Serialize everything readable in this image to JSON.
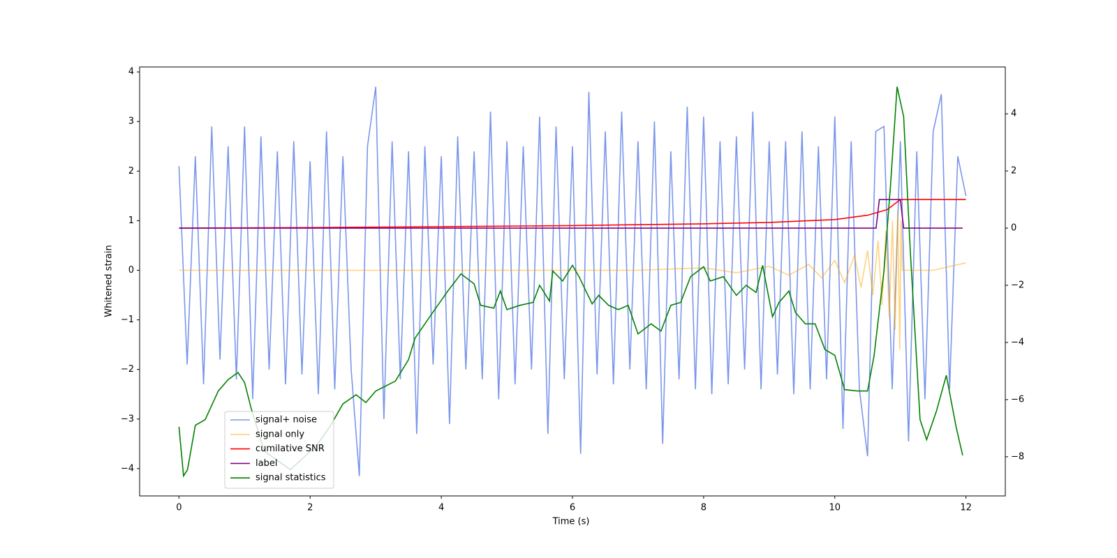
{
  "chart_data": {
    "type": "line",
    "xlabel": "Time (s)",
    "ylabel": "Whitened strain",
    "xlim": [
      -0.6,
      12.6
    ],
    "ylim": [
      -4.55,
      4.1
    ],
    "y2lim": [
      -9.37,
      5.64
    ],
    "xticks": [
      0,
      2,
      4,
      6,
      8,
      10,
      12
    ],
    "yticks": [
      {
        "value": -4,
        "label": "−4"
      },
      {
        "value": -3,
        "label": "−3"
      },
      {
        "value": -2,
        "label": "−2"
      },
      {
        "value": -1,
        "label": "−1"
      },
      0,
      1,
      2,
      3,
      4
    ],
    "y2ticks": [
      {
        "value": -8,
        "label": "−8"
      },
      {
        "value": -6,
        "label": "−6"
      },
      {
        "value": -4,
        "label": "−4"
      },
      {
        "value": -2,
        "label": "−2"
      },
      0,
      2,
      4
    ],
    "legend": "lower left",
    "series": [
      {
        "name": "signal+ noise",
        "color": "#4169e1",
        "opacity": 0.7,
        "x": [
          0,
          0.125,
          0.25,
          0.375,
          0.5,
          0.625,
          0.75,
          0.875,
          1,
          1.125,
          1.25,
          1.375,
          1.5,
          1.625,
          1.75,
          1.875,
          2,
          2.125,
          2.25,
          2.375,
          2.5,
          2.625,
          2.75,
          2.875,
          3,
          3.125,
          3.25,
          3.375,
          3.5,
          3.625,
          3.75,
          3.875,
          4,
          4.125,
          4.25,
          4.375,
          4.5,
          4.625,
          4.75,
          4.875,
          5,
          5.125,
          5.25,
          5.375,
          5.5,
          5.625,
          5.75,
          5.875,
          6,
          6.125,
          6.25,
          6.375,
          6.5,
          6.625,
          6.75,
          6.875,
          7,
          7.125,
          7.25,
          7.375,
          7.5,
          7.625,
          7.75,
          7.875,
          8,
          8.125,
          8.25,
          8.375,
          8.5,
          8.625,
          8.75,
          8.875,
          9,
          9.125,
          9.25,
          9.375,
          9.5,
          9.625,
          9.75,
          9.875,
          10,
          10.125,
          10.25,
          10.375,
          10.5,
          10.625,
          10.75,
          10.875,
          11,
          11.125,
          11.25,
          11.375,
          11.5,
          11.625,
          11.75,
          11.875,
          12
        ],
        "values": [
          2.1,
          -1.9,
          2.3,
          -2.3,
          2.9,
          -1.8,
          2.5,
          -2.2,
          2.9,
          -2.6,
          2.7,
          -2.0,
          2.4,
          -2.3,
          2.6,
          -2.1,
          2.2,
          -2.5,
          2.8,
          -2.4,
          2.3,
          -2.0,
          -4.15,
          2.5,
          3.7,
          -3.0,
          2.6,
          -2.2,
          2.4,
          -3.3,
          2.5,
          -1.9,
          2.3,
          -3.1,
          2.7,
          -2.0,
          2.4,
          -2.2,
          3.2,
          -2.6,
          2.6,
          -2.3,
          2.5,
          -2.0,
          3.1,
          -3.3,
          2.9,
          -2.2,
          2.5,
          -3.7,
          3.6,
          -2.1,
          2.8,
          -2.3,
          3.2,
          -2.0,
          2.6,
          -2.4,
          3.0,
          -3.5,
          2.4,
          -2.2,
          3.3,
          -2.4,
          3.1,
          -2.5,
          2.6,
          -2.3,
          2.7,
          -2.0,
          3.2,
          -2.4,
          2.6,
          -2.1,
          2.6,
          -2.5,
          2.8,
          -2.4,
          2.5,
          -2.2,
          3.1,
          -3.2,
          2.6,
          -2.4,
          -3.75,
          2.8,
          2.9,
          -2.4,
          2.6,
          -3.45,
          2.4,
          -2.6,
          2.8,
          3.55,
          -2.4,
          2.3,
          1.5
        ]
      },
      {
        "name": "signal only",
        "color": "orange",
        "opacity": 0.5,
        "x": [
          0,
          1,
          2,
          3,
          4,
          5,
          6,
          7,
          8,
          8.5,
          9,
          9.3,
          9.6,
          9.8,
          10,
          10.15,
          10.3,
          10.4,
          10.5,
          10.58,
          10.66,
          10.72,
          10.78,
          10.83,
          10.88,
          10.92,
          10.96,
          10.99,
          11.01,
          11.03,
          11.5,
          12
        ],
        "values": [
          0,
          0,
          0,
          0,
          0,
          0,
          0,
          0,
          0.05,
          -0.05,
          0.08,
          -0.1,
          0.12,
          -0.15,
          0.2,
          -0.25,
          0.3,
          -0.35,
          0.4,
          -0.5,
          0.6,
          -0.7,
          0.8,
          -0.95,
          1.0,
          -1.2,
          1.2,
          -1.6,
          1.0,
          0,
          0,
          0.15
        ]
      },
      {
        "name": "cumilative SNR",
        "color": "red",
        "axis": "y2",
        "x": [
          0,
          2,
          4,
          6,
          8,
          9,
          10,
          10.5,
          10.8,
          11,
          12
        ],
        "values": [
          0,
          0.02,
          0.05,
          0.09,
          0.15,
          0.2,
          0.3,
          0.45,
          0.65,
          1.0,
          1.0
        ]
      },
      {
        "name": "label",
        "color": "purple",
        "axis": "y2",
        "x": [
          0,
          10.63,
          10.68,
          11.0,
          11.05,
          11.95
        ],
        "values": [
          0,
          0,
          1,
          1,
          0,
          0
        ]
      },
      {
        "name": "signal statistics",
        "color": "green",
        "axis": "y2",
        "x": [
          0,
          0.07,
          0.13,
          0.25,
          0.4,
          0.6,
          0.75,
          0.9,
          1.0,
          1.1,
          1.3,
          1.7,
          2.1,
          2.3,
          2.5,
          2.7,
          2.85,
          3.0,
          3.3,
          3.5,
          3.6,
          3.75,
          3.9,
          4.1,
          4.3,
          4.5,
          4.6,
          4.8,
          4.9,
          5.0,
          5.2,
          5.4,
          5.5,
          5.65,
          5.7,
          5.85,
          6.0,
          6.1,
          6.3,
          6.4,
          6.55,
          6.7,
          6.85,
          7.0,
          7.2,
          7.35,
          7.5,
          7.65,
          7.8,
          8.0,
          8.1,
          8.3,
          8.5,
          8.65,
          8.8,
          8.9,
          9.05,
          9.15,
          9.3,
          9.4,
          9.55,
          9.7,
          9.85,
          10.0,
          10.15,
          10.35,
          10.5,
          10.6,
          10.75,
          10.85,
          10.95,
          11.05,
          11.15,
          11.3,
          11.4,
          11.55,
          11.7,
          11.85,
          11.95
        ],
        "values": [
          -6.95,
          -8.67,
          -8.45,
          -6.9,
          -6.7,
          -5.7,
          -5.3,
          -5.05,
          -5.4,
          -6.3,
          -7.8,
          -8.45,
          -7.6,
          -6.95,
          -6.15,
          -5.83,
          -6.1,
          -5.7,
          -5.35,
          -4.6,
          -3.85,
          -3.35,
          -2.85,
          -2.2,
          -1.6,
          -1.95,
          -2.7,
          -2.8,
          -2.2,
          -2.85,
          -2.7,
          -2.6,
          -2.0,
          -2.55,
          -1.5,
          -1.85,
          -1.3,
          -1.7,
          -2.65,
          -2.35,
          -2.7,
          -2.85,
          -2.7,
          -3.7,
          -3.35,
          -3.6,
          -2.7,
          -2.6,
          -1.7,
          -1.35,
          -1.85,
          -1.7,
          -2.35,
          -2.0,
          -2.25,
          -1.3,
          -3.1,
          -2.6,
          -2.2,
          -2.95,
          -3.35,
          -3.35,
          -4.25,
          -4.45,
          -5.65,
          -5.7,
          -5.7,
          -4.45,
          -1.5,
          1.5,
          4.95,
          3.9,
          -0.75,
          -6.7,
          -7.4,
          -6.4,
          -5.15,
          -6.95,
          -7.95
        ]
      }
    ]
  }
}
